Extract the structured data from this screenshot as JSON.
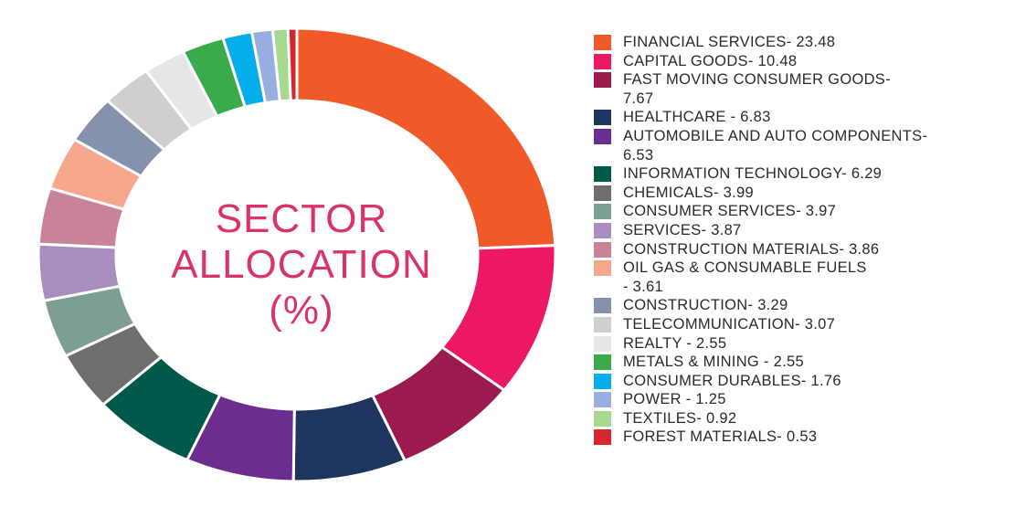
{
  "chart_data": {
    "type": "pie",
    "donut": true,
    "center_label": [
      "SECTOR",
      "ALLOCATION",
      "(%)"
    ],
    "legend_position": "right",
    "slices": [
      {
        "label": "FINANCIAL SERVICES",
        "value": 23.48,
        "color": "#f05a28"
      },
      {
        "label": "CAPITAL GOODS",
        "value": 10.48,
        "color": "#ec1866"
      },
      {
        "label": "FAST MOVING CONSUMER GOODS",
        "value": 7.67,
        "color": "#9b1b4e"
      },
      {
        "label": "HEALTHCARE",
        "value": 6.83,
        "color": "#1e3560"
      },
      {
        "label": "AUTOMOBILE AND AUTO COMPONENTS",
        "value": 6.53,
        "color": "#6b2e8e"
      },
      {
        "label": "INFORMATION TECHNOLOGY",
        "value": 6.29,
        "color": "#00594a"
      },
      {
        "label": "CHEMICALS",
        "value": 3.99,
        "color": "#6e6e6e"
      },
      {
        "label": "CONSUMER SERVICES",
        "value": 3.97,
        "color": "#7c9e94"
      },
      {
        "label": "SERVICES",
        "value": 3.87,
        "color": "#a98cc0"
      },
      {
        "label": "CONSTRUCTION MATERIALS",
        "value": 3.86,
        "color": "#c88398"
      },
      {
        "label": "OIL GAS & CONSUMABLE FUELS",
        "value": 3.61,
        "color": "#f6a68b"
      },
      {
        "label": "CONSTRUCTION",
        "value": 3.29,
        "color": "#8592ab"
      },
      {
        "label": "TELECOMMUNICATION",
        "value": 3.07,
        "color": "#cfcfcf"
      },
      {
        "label": "REALTY",
        "value": 2.55,
        "color": "#e6e6e6"
      },
      {
        "label": "METALS & MINING",
        "value": 2.55,
        "color": "#3aab4a"
      },
      {
        "label": "CONSUMER DURABLES",
        "value": 1.76,
        "color": "#06adeb"
      },
      {
        "label": "POWER",
        "value": 1.25,
        "color": "#98aee0"
      },
      {
        "label": "TEXTILES",
        "value": 0.92,
        "color": "#a8d890"
      },
      {
        "label": "FOREST MATERIALS",
        "value": 0.53,
        "color": "#d62630"
      }
    ]
  },
  "legend": [
    {
      "text": "FINANCIAL SERVICES- 23.48",
      "color": "#f05a28"
    },
    {
      "text": "CAPITAL GOODS- 10.48",
      "color": "#ec1866"
    },
    {
      "text": "FAST MOVING CONSUMER GOODS-",
      "cont": "7.67",
      "color": "#9b1b4e"
    },
    {
      "text": "HEALTHCARE - 6.83",
      "color": "#1e3560"
    },
    {
      "text": "AUTOMOBILE AND AUTO COMPONENTS-",
      "cont": "6.53",
      "color": "#6b2e8e"
    },
    {
      "text": "INFORMATION TECHNOLOGY- 6.29",
      "color": "#00594a"
    },
    {
      "text": "CHEMICALS- 3.99",
      "color": "#6e6e6e"
    },
    {
      "text": "CONSUMER SERVICES- 3.97",
      "color": "#7c9e94"
    },
    {
      "text": "SERVICES- 3.87",
      "color": "#a98cc0"
    },
    {
      "text": "CONSTRUCTION MATERIALS- 3.86",
      "color": "#c88398"
    },
    {
      "text": "OIL GAS & CONSUMABLE FUELS",
      "cont": "- 3.61",
      "color": "#f6a68b"
    },
    {
      "text": "CONSTRUCTION- 3.29",
      "color": "#8592ab"
    },
    {
      "text": "TELECOMMUNICATION- 3.07",
      "color": "#cfcfcf"
    },
    {
      "text": "REALTY - 2.55",
      "color": "#e6e6e6"
    },
    {
      "text": "METALS & MINING - 2.55",
      "color": "#3aab4a"
    },
    {
      "text": "CONSUMER DURABLES- 1.76",
      "color": "#06adeb"
    },
    {
      "text": "POWER - 1.25",
      "color": "#98aee0"
    },
    {
      "text": "TEXTILES- 0.92",
      "color": "#a8d890"
    },
    {
      "text": "FOREST MATERIALS- 0.53",
      "color": "#d62630"
    }
  ]
}
